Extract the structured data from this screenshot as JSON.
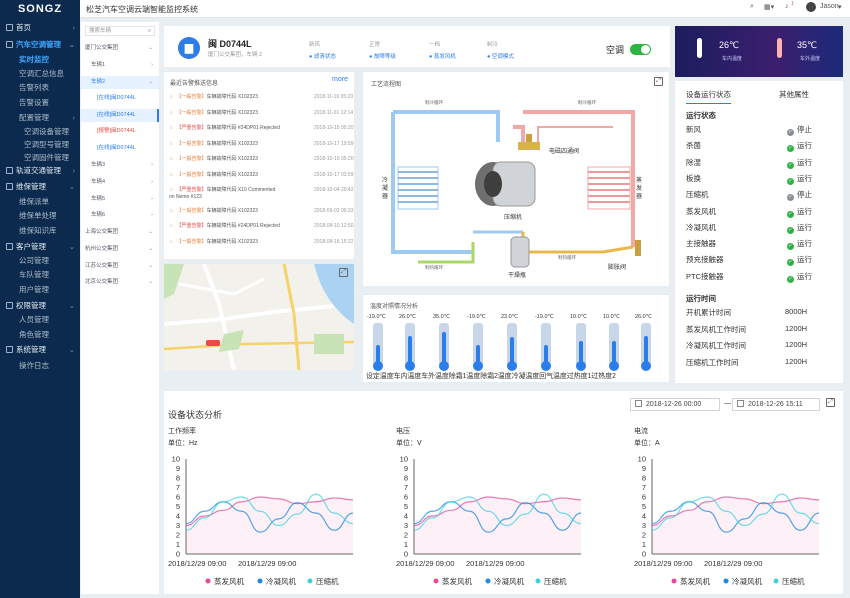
{
  "topbar": {
    "logo": "SONGZ",
    "title": "松芝汽车空调云端智能监控系统",
    "user": "Jason",
    "badge": "1"
  },
  "sidebar": {
    "items": [
      {
        "label": "首页",
        "level": "h",
        "icon": "home-icon"
      },
      {
        "label": "汽车空调管理",
        "level": "h",
        "icon": "ac-icon",
        "active": true,
        "open": true
      },
      {
        "label": "实时监控",
        "level": "s",
        "active": true
      },
      {
        "label": "空调汇总信息",
        "level": "s"
      },
      {
        "label": "告警列表",
        "level": "s"
      },
      {
        "label": "告警设置",
        "level": "s"
      },
      {
        "label": "配置管理",
        "level": "s",
        "arrow": true
      },
      {
        "label": "空调设备管理",
        "level": "s2"
      },
      {
        "label": "空调型号管理",
        "level": "s2"
      },
      {
        "label": "空调固件管理",
        "level": "s2"
      },
      {
        "label": "轨道交通管理",
        "level": "h",
        "icon": "rail-icon",
        "arrow": true
      },
      {
        "label": "维保管理",
        "level": "h",
        "icon": "wrench-icon",
        "open": true
      },
      {
        "label": "维保派单",
        "level": "s"
      },
      {
        "label": "维保单处理",
        "level": "s"
      },
      {
        "label": "维保知识库",
        "level": "s"
      },
      {
        "label": "客户管理",
        "level": "h",
        "icon": "customer-icon",
        "open": true
      },
      {
        "label": "公司管理",
        "level": "s"
      },
      {
        "label": "车队管理",
        "level": "s"
      },
      {
        "label": "用户管理",
        "level": "s"
      },
      {
        "label": "权限管理",
        "level": "h",
        "icon": "permission-icon",
        "open": true
      },
      {
        "label": "人员管理",
        "level": "s"
      },
      {
        "label": "角色管理",
        "level": "s"
      },
      {
        "label": "系统管理",
        "level": "h",
        "icon": "system-icon",
        "open": true
      },
      {
        "label": "操作日志",
        "level": "s"
      }
    ]
  },
  "tree": {
    "search_placeholder": "搜索车辆",
    "items": [
      {
        "label": "厦门公交集团",
        "indent": 0,
        "arrow": "⌄"
      },
      {
        "label": "车辆1",
        "indent": 1,
        "arrow": "›"
      },
      {
        "label": "车辆2",
        "indent": 1,
        "arrow": "⌄",
        "sel": true
      },
      {
        "label": "[在线]闽D0744L",
        "indent": 2,
        "tag": "online",
        "sel": true
      },
      {
        "label": "[在线]闽D0744L",
        "indent": 2,
        "tag": "online",
        "vsel": true
      },
      {
        "label": "[报警]闽D0744L",
        "indent": 2,
        "tag": "alarm"
      },
      {
        "label": "[在线]闽D0744L",
        "indent": 2,
        "tag": "online"
      },
      {
        "label": "车辆3",
        "indent": 1,
        "arrow": "›"
      },
      {
        "label": "车辆4",
        "indent": 1,
        "arrow": "›"
      },
      {
        "label": "车辆5",
        "indent": 1,
        "arrow": "›"
      },
      {
        "label": "车辆6",
        "indent": 1,
        "arrow": "›"
      },
      {
        "label": "上海公交集团",
        "indent": 0,
        "arrow": "⌄"
      },
      {
        "label": "杭州公交集团",
        "indent": 0,
        "arrow": "⌄"
      },
      {
        "label": "江苏公交集团",
        "indent": 0,
        "arrow": "⌄"
      },
      {
        "label": "北京公交集团",
        "indent": 0,
        "arrow": "⌄"
      }
    ]
  },
  "vehicle": {
    "id": "闽 D0744L",
    "sub": "厦门公交集团，车辆 2",
    "stats": [
      {
        "label": "新风",
        "value": "● 滤清状态"
      },
      {
        "label": "正常",
        "value": "● 故障等级"
      },
      {
        "label": "一档",
        "value": "● 蒸发风机"
      },
      {
        "label": "制冷",
        "value": "● 空调模式"
      }
    ],
    "ac_label": "空调",
    "ac_on": true
  },
  "alarms": {
    "title": "最近告警推送信息",
    "more": "more",
    "items": [
      {
        "tag": "【一般告警】",
        "text": "车辆故障代码 X102323",
        "time": "2018-11-19 05:20",
        "level": "y"
      },
      {
        "tag": "【一般告警】",
        "text": "车辆故障代码 X102323",
        "time": "2018-11-01 12:14",
        "level": "y"
      },
      {
        "tag": "【严重告警】",
        "text": "车辆故障代码 #24DP01 Rejected",
        "time": "2018-10-15 05:20",
        "level": "r"
      },
      {
        "tag": "【一般告警】",
        "text": "车辆故障代码 X102323",
        "time": "2018-10-17 19:59",
        "level": "y"
      },
      {
        "tag": "【一般告警】",
        "text": "车辆故障代码 X102323",
        "time": "2018-10-15 05:20",
        "level": "y"
      },
      {
        "tag": "【一般告警】",
        "text": "车辆故障代码 X102323",
        "time": "2018-10-17 03:59",
        "level": "y"
      },
      {
        "tag": "【严重告警】",
        "text": "车辆故障代码 X10 Commented",
        "text2": "on Nemo #123",
        "time": "2018-10-04 20:42",
        "level": "r"
      },
      {
        "tag": "【一般告警】",
        "text": "车辆故障代码 X102323",
        "time": "2018-09-03 09:33",
        "level": "y"
      },
      {
        "tag": "【严重告警】",
        "text": "车辆故障代码 #24DP01 Rejected",
        "time": "2018-09-10 12:50",
        "level": "r"
      },
      {
        "tag": "【一般告警】",
        "text": "车辆故障代码 X102323",
        "time": "2018-09-15 15:22",
        "level": "y"
      }
    ]
  },
  "flow": {
    "title": "工艺流程图",
    "labels": {
      "compressor": "压缩机",
      "valve": "电磁四通阀",
      "condenser": "冷凝器",
      "evaporator": "蒸发器",
      "dryer": "干燥瓶",
      "expansion": "膨胀阀",
      "hp_gas": "制冷循环",
      "refrig": "制冷循环",
      "heat": "制热循环"
    }
  },
  "temps": {
    "title": "温度对照情况分析",
    "values": [
      "-19.0℃",
      "26.0℃",
      "35.0℃",
      "-19.0℃",
      "23.0℃",
      "-19.0℃",
      "10.0℃",
      "10.0℃",
      "26.0℃"
    ],
    "levels": [
      0.5,
      0.75,
      0.85,
      0.5,
      0.72,
      0.5,
      0.62,
      0.62,
      0.75
    ],
    "captions": "设定温度车内温度车外温度除霜1温度除霜2温度冷凝温度回气温度过热度1过热度2"
  },
  "header_temps": {
    "left": "26℃",
    "left_label": "车内温度",
    "right": "35℃",
    "right_label": "车外温度"
  },
  "status": {
    "tabs": [
      "设备运行状态",
      "其他属性"
    ],
    "run_title": "运行状态",
    "items": [
      {
        "name": "新风",
        "state": "停止",
        "color": "#8a8f96"
      },
      {
        "name": "杀菌",
        "state": "运行",
        "color": "#2fb344"
      },
      {
        "name": "除湿",
        "state": "运行",
        "color": "#2fb344"
      },
      {
        "name": "板换",
        "state": "运行",
        "color": "#2fb344"
      },
      {
        "name": "压缩机",
        "state": "停止",
        "color": "#8a8f96"
      },
      {
        "name": "蒸发风机",
        "state": "运行",
        "color": "#2fb344"
      },
      {
        "name": "冷凝风机",
        "state": "运行",
        "color": "#2fb344"
      },
      {
        "name": "主接触器",
        "state": "运行",
        "color": "#2fb344"
      },
      {
        "name": "预充接触器",
        "state": "运行",
        "color": "#2fb344"
      },
      {
        "name": "PTC接触器",
        "state": "运行",
        "color": "#2fb344"
      }
    ],
    "time_title": "运行时间",
    "times": [
      {
        "name": "开机累计时间",
        "value": "8000H"
      },
      {
        "name": "蒸发风机工作时间",
        "value": "1200H"
      },
      {
        "name": "冷凝风机工作时间",
        "value": "1200H"
      },
      {
        "name": "压缩机工作时间",
        "value": "1200H"
      }
    ]
  },
  "analysis": {
    "title": "设备状态分析",
    "date_from": "2018-12-26  00:00",
    "date_sep": "—",
    "date_to": "2018-12-26  15:11"
  },
  "chart_data": [
    {
      "type": "line",
      "title": "工作频率",
      "ylabel": "单位：Hz",
      "ylim": [
        0,
        10
      ],
      "yticks": [
        "0",
        "1",
        "2",
        "3",
        "4",
        "5",
        "6",
        "7",
        "8",
        "9",
        "10"
      ],
      "xticks": [
        "2018/12/29 09:00",
        "2018/12/29 09:00"
      ],
      "legend": [
        "蒸发风机",
        "冷凝风机",
        "压缩机"
      ],
      "colors": [
        "#e64b9b",
        "#1e88e5",
        "#3fd0e0"
      ],
      "series": [
        {
          "name": "蒸发风机",
          "values": [
            3,
            4,
            4.6,
            5.5,
            6,
            5.8,
            5.3,
            5.5,
            5.9,
            5.7
          ]
        },
        {
          "name": "冷凝风机",
          "values": [
            3.2,
            4.5,
            5.5,
            4.5,
            2.3,
            3.7,
            5.4,
            4.3,
            2.5,
            4.3
          ]
        },
        {
          "name": "压缩机",
          "values": [
            2.5,
            3.8,
            5.5,
            6,
            4.5,
            3,
            4.2,
            6.3,
            4.3,
            3.2
          ]
        }
      ]
    },
    {
      "type": "line",
      "title": "电压",
      "ylabel": "单位：V",
      "ylim": [
        0,
        10
      ],
      "yticks": [
        "0",
        "1",
        "2",
        "3",
        "4",
        "5",
        "6",
        "7",
        "8",
        "9",
        "10"
      ],
      "xticks": [
        "2018/12/29 09:00",
        "2018/12/29 09:00"
      ],
      "legend": [
        "蒸发风机",
        "冷凝风机",
        "压缩机"
      ],
      "colors": [
        "#e64b9b",
        "#1e88e5",
        "#3fd0e0"
      ],
      "series": [
        {
          "name": "蒸发风机",
          "values": [
            3,
            4,
            4.6,
            5.5,
            6,
            5.8,
            5.3,
            5.5,
            5.9,
            5.7
          ]
        },
        {
          "name": "冷凝风机",
          "values": [
            3.2,
            4.5,
            5.5,
            4.5,
            2.3,
            3.7,
            5.4,
            4.3,
            2.5,
            4.3
          ]
        },
        {
          "name": "压缩机",
          "values": [
            2.5,
            3.8,
            5.5,
            6,
            4.5,
            3,
            4.2,
            6.3,
            4.3,
            3.2
          ]
        }
      ]
    },
    {
      "type": "line",
      "title": "电流",
      "ylabel": "单位：A",
      "ylim": [
        0,
        10
      ],
      "yticks": [
        "0",
        "1",
        "2",
        "3",
        "4",
        "5",
        "6",
        "7",
        "8",
        "9",
        "10"
      ],
      "xticks": [
        "2018/12/29 09:00",
        "2018/12/29 09:00"
      ],
      "legend": [
        "蒸发风机",
        "冷凝风机",
        "压缩机"
      ],
      "colors": [
        "#e64b9b",
        "#1e88e5",
        "#3fd0e0"
      ],
      "series": [
        {
          "name": "蒸发风机",
          "values": [
            3,
            4,
            4.6,
            5.5,
            6,
            5.8,
            5.3,
            5.5,
            5.9,
            5.7
          ]
        },
        {
          "name": "冷凝风机",
          "values": [
            3.2,
            4.5,
            5.5,
            4.5,
            2.3,
            3.7,
            5.4,
            4.3,
            2.5,
            4.3
          ]
        },
        {
          "name": "压缩机",
          "values": [
            2.5,
            3.8,
            5.5,
            6,
            4.5,
            3,
            4.2,
            6.3,
            4.3,
            3.2
          ]
        }
      ]
    }
  ]
}
